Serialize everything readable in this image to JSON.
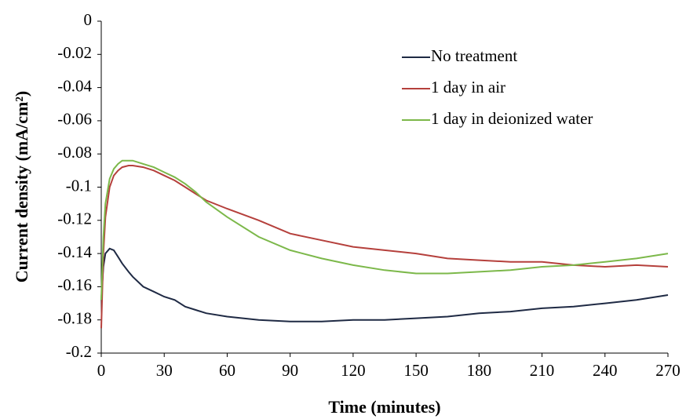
{
  "chart_data": {
    "type": "line",
    "x_label": "Time (minutes)",
    "y_label": "Current density (mA/cm²)",
    "x": [
      0,
      1,
      2,
      4,
      6,
      8,
      10,
      13,
      15,
      20,
      25,
      30,
      35,
      40,
      45,
      50,
      60,
      75,
      90,
      105,
      120,
      135,
      150,
      165,
      180,
      195,
      210,
      225,
      240,
      255,
      270
    ],
    "series": [
      {
        "name": "No treatment",
        "color": "#1f2a44",
        "values": [
          -0.168,
          -0.148,
          -0.14,
          -0.137,
          -0.138,
          -0.142,
          -0.146,
          -0.151,
          -0.154,
          -0.16,
          -0.163,
          -0.166,
          -0.168,
          -0.172,
          -0.174,
          -0.176,
          -0.178,
          -0.18,
          -0.181,
          -0.181,
          -0.18,
          -0.18,
          -0.179,
          -0.178,
          -0.176,
          -0.175,
          -0.173,
          -0.172,
          -0.17,
          -0.168,
          -0.165
        ]
      },
      {
        "name": "1 day in air",
        "color": "#b5403c",
        "values": [
          -0.185,
          -0.14,
          -0.118,
          -0.1,
          -0.093,
          -0.09,
          -0.088,
          -0.087,
          -0.087,
          -0.088,
          -0.09,
          -0.093,
          -0.096,
          -0.1,
          -0.104,
          -0.108,
          -0.113,
          -0.12,
          -0.128,
          -0.132,
          -0.136,
          -0.138,
          -0.14,
          -0.143,
          -0.144,
          -0.145,
          -0.145,
          -0.147,
          -0.148,
          -0.147,
          -0.148
        ]
      },
      {
        "name": "1 day in deionized water",
        "color": "#7cb84a",
        "values": [
          -0.168,
          -0.13,
          -0.11,
          -0.095,
          -0.089,
          -0.086,
          -0.084,
          -0.084,
          -0.084,
          -0.086,
          -0.088,
          -0.091,
          -0.094,
          -0.098,
          -0.103,
          -0.109,
          -0.118,
          -0.13,
          -0.138,
          -0.143,
          -0.147,
          -0.15,
          -0.152,
          -0.152,
          -0.151,
          -0.15,
          -0.148,
          -0.147,
          -0.145,
          -0.143,
          -0.14
        ]
      }
    ],
    "xlim": [
      0,
      270
    ],
    "xticks": [
      0,
      30,
      60,
      90,
      120,
      150,
      180,
      210,
      240,
      270
    ],
    "ylim": [
      -0.2,
      0
    ],
    "yticks": [
      0,
      -0.02,
      -0.04,
      -0.06,
      -0.08,
      -0.1,
      -0.12,
      -0.14,
      -0.16,
      -0.18,
      -0.2
    ],
    "grid": false,
    "legend": "upper-right"
  }
}
